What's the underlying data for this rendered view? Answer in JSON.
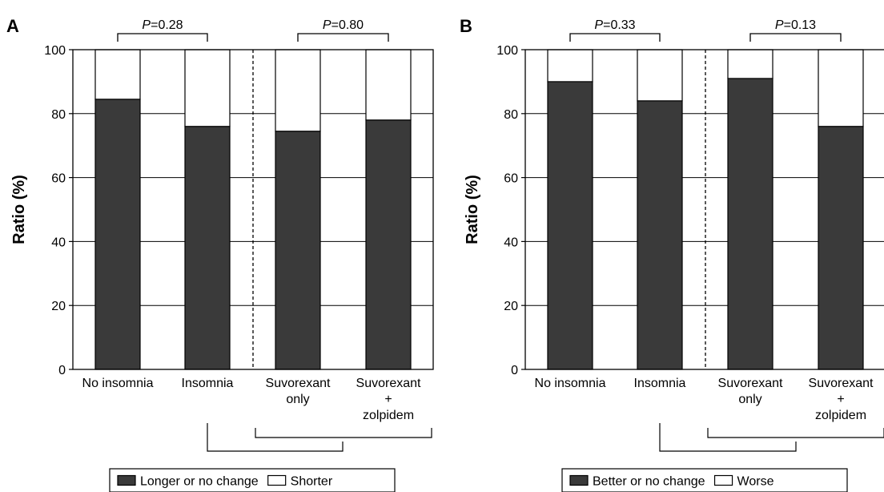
{
  "chart_data": [
    {
      "type": "bar",
      "panel": "A",
      "stacked": true,
      "categories": [
        "No insomnia",
        "Insomnia",
        "Suvorexant\nonly",
        "Suvorexant\n+\nzolpidem"
      ],
      "series": [
        {
          "name": "Longer or no change",
          "values": [
            84.5,
            76,
            74.5,
            78
          ],
          "color": "#3a3a3a"
        },
        {
          "name": "Shorter",
          "values": [
            15.5,
            24,
            25.5,
            22
          ],
          "color": "#ffffff"
        }
      ],
      "ylabel": "Ratio (%)",
      "ylim": [
        0,
        100
      ],
      "yticks": [
        0,
        20,
        40,
        60,
        80,
        100
      ],
      "grid": true,
      "comparisons": [
        {
          "between": [
            0,
            1
          ],
          "label_italic": "P",
          "label_rest": "=0.28"
        },
        {
          "between": [
            2,
            3
          ],
          "label_italic": "P",
          "label_rest": "=0.80"
        }
      ],
      "legend_position": "bottom"
    },
    {
      "type": "bar",
      "panel": "B",
      "stacked": true,
      "categories": [
        "No insomnia",
        "Insomnia",
        "Suvorexant\nonly",
        "Suvorexant\n+\nzolpidem"
      ],
      "series": [
        {
          "name": "Better or no change",
          "values": [
            90,
            84,
            91,
            76
          ],
          "color": "#3a3a3a"
        },
        {
          "name": "Worse",
          "values": [
            10,
            16,
            9,
            24
          ],
          "color": "#ffffff"
        }
      ],
      "ylabel": "Ratio (%)",
      "ylim": [
        0,
        100
      ],
      "yticks": [
        0,
        20,
        40,
        60,
        80,
        100
      ],
      "grid": true,
      "comparisons": [
        {
          "between": [
            0,
            1
          ],
          "label_italic": "P",
          "label_rest": "=0.33"
        },
        {
          "between": [
            2,
            3
          ],
          "label_italic": "P",
          "label_rest": "=0.13"
        }
      ],
      "legend_position": "bottom"
    }
  ],
  "colors": {
    "dark": "#3a3a3a",
    "light": "#ffffff",
    "stroke": "#000000"
  }
}
